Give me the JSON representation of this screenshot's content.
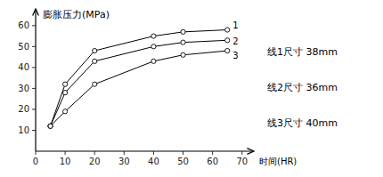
{
  "chart_data": {
    "type": "line",
    "title": "膨胀压力(MPa)",
    "x_label": "时间(HR)",
    "x": [
      5,
      10,
      20,
      40,
      50,
      65
    ],
    "series": [
      {
        "name": "1",
        "color": "#000000",
        "marker": "circle",
        "values": [
          12,
          32,
          48,
          55,
          57,
          58
        ]
      },
      {
        "name": "2",
        "color": "#000000",
        "marker": "circle",
        "values": [
          12,
          28,
          43,
          50,
          52,
          53
        ]
      },
      {
        "name": "3",
        "color": "#000000",
        "marker": "circle",
        "values": [
          12,
          19,
          32,
          43,
          46,
          48
        ]
      }
    ],
    "annotations": [
      "线1尺寸 38mm",
      "线2尺寸 36mm",
      "线3尺寸 40mm"
    ],
    "xlim": [
      0,
      74
    ],
    "ylim": [
      0,
      68
    ],
    "xticks": [
      0,
      10,
      20,
      30,
      40,
      50,
      60,
      70
    ],
    "yticks": [
      10,
      20,
      30,
      40,
      50,
      60
    ],
    "grid": false
  }
}
